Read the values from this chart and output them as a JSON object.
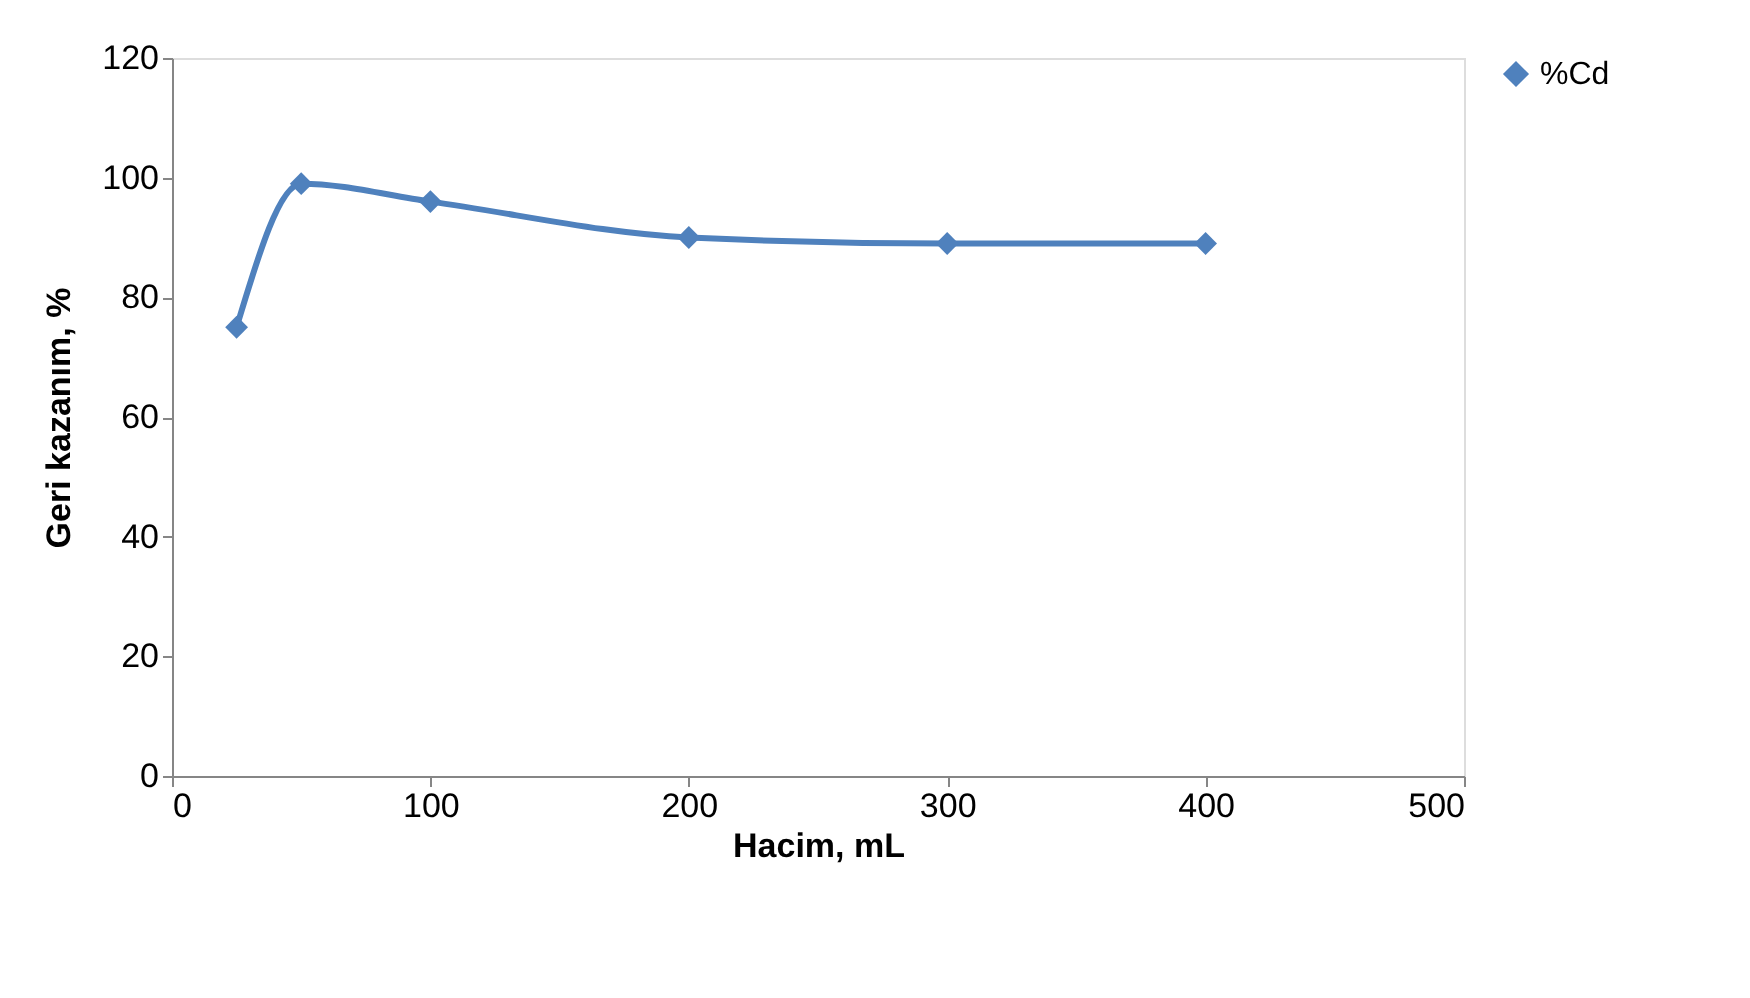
{
  "chart_data": {
    "type": "line",
    "xlabel": "Hacim, mL",
    "ylabel": "Geri kazanım, %",
    "x": [
      25,
      50,
      100,
      200,
      300,
      400
    ],
    "series": [
      {
        "name": "%Cd",
        "color": "#4f81bd",
        "values": [
          75,
          99,
          96,
          90,
          89,
          89
        ]
      }
    ],
    "xlim": [
      0,
      500
    ],
    "xticks": [
      0,
      100,
      200,
      300,
      400,
      500
    ],
    "ylim": [
      0,
      120
    ],
    "yticks": [
      0,
      20,
      40,
      60,
      80,
      100,
      120
    ],
    "grid": false,
    "legend": "right",
    "marker": "diamond",
    "line_style": "solid"
  }
}
